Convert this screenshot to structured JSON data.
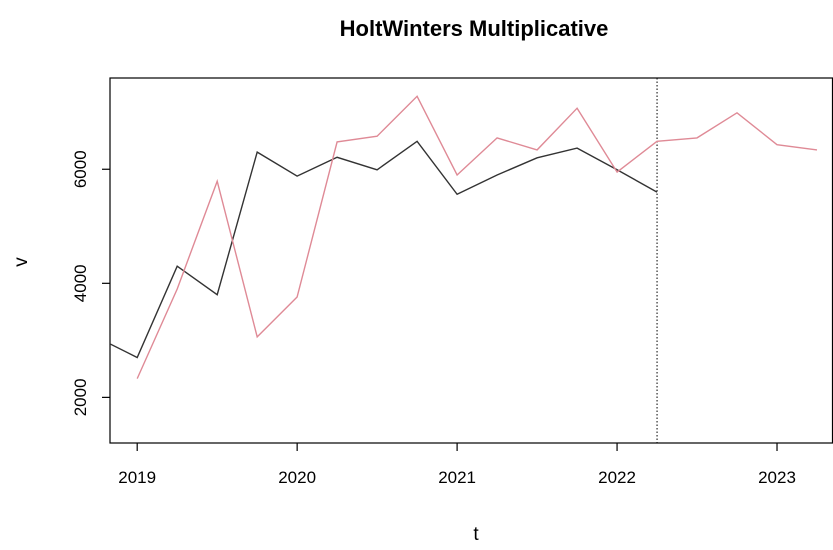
{
  "chart_data": {
    "type": "line",
    "title": "HoltWinters Multiplicative",
    "xlabel": "t",
    "ylabel": "v",
    "xlim": [
      2018.83,
      2023.35
    ],
    "ylim": [
      1200,
      7600
    ],
    "x_ticks": [
      2019,
      2020,
      2021,
      2022,
      2023
    ],
    "x_tick_labels": [
      "2019",
      "2020",
      "2021",
      "2022",
      "2023"
    ],
    "y_ticks": [
      2000,
      4000,
      6000
    ],
    "y_tick_labels": [
      "2000",
      "4000",
      "6000"
    ],
    "grid": false,
    "legend": "none",
    "vline": {
      "x": 2022.25,
      "style": "dotted",
      "color": "#000000"
    },
    "series": [
      {
        "color": "#333333",
        "x": [
          2018.75,
          2019.0,
          2019.25,
          2019.5,
          2019.75,
          2020.0,
          2020.25,
          2020.5,
          2020.75,
          2021.0,
          2021.25,
          2021.5,
          2021.75,
          2022.0,
          2022.25
        ],
        "values": [
          3050,
          2700,
          4300,
          3800,
          6300,
          5880,
          6210,
          5990,
          6490,
          5560,
          5900,
          6200,
          6370,
          5990,
          5600
        ]
      },
      {
        "color": "#df8a96",
        "x": [
          2019.0,
          2019.25,
          2019.5,
          2019.75,
          2020.0,
          2020.25,
          2020.5,
          2020.75,
          2021.0,
          2021.25,
          2021.5,
          2021.75,
          2022.0,
          2022.25,
          2022.5,
          2022.75,
          2023.0,
          2023.25
        ],
        "values": [
          2330,
          3900,
          5790,
          3060,
          3760,
          6480,
          6580,
          7280,
          5900,
          6550,
          6340,
          7070,
          5950,
          6490,
          6550,
          6990,
          6430,
          6340
        ]
      }
    ]
  }
}
